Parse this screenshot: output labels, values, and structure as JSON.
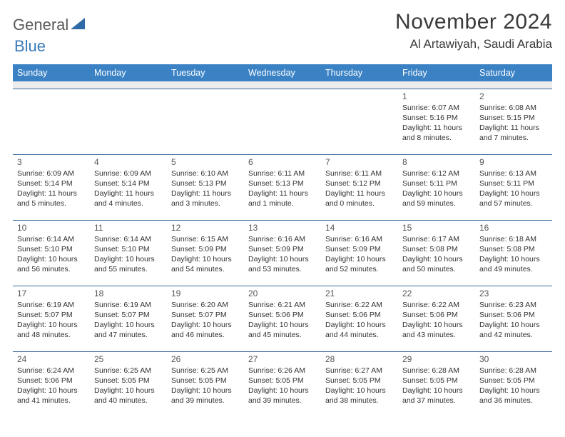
{
  "brand": {
    "word1": "General",
    "word2": "Blue",
    "color_accent": "#3a7ab8",
    "header_bg": "#3a82c4",
    "rule_color": "#3a6a9a"
  },
  "title": {
    "month": "November 2024",
    "location": "Al Artawiyah, Saudi Arabia"
  },
  "weekdays": [
    "Sunday",
    "Monday",
    "Tuesday",
    "Wednesday",
    "Thursday",
    "Friday",
    "Saturday"
  ],
  "calendar": {
    "first_weekday_index": 5,
    "days": [
      {
        "n": 1,
        "sunrise": "6:07 AM",
        "sunset": "5:16 PM",
        "daylight": "11 hours and 8 minutes."
      },
      {
        "n": 2,
        "sunrise": "6:08 AM",
        "sunset": "5:15 PM",
        "daylight": "11 hours and 7 minutes."
      },
      {
        "n": 3,
        "sunrise": "6:09 AM",
        "sunset": "5:14 PM",
        "daylight": "11 hours and 5 minutes."
      },
      {
        "n": 4,
        "sunrise": "6:09 AM",
        "sunset": "5:14 PM",
        "daylight": "11 hours and 4 minutes."
      },
      {
        "n": 5,
        "sunrise": "6:10 AM",
        "sunset": "5:13 PM",
        "daylight": "11 hours and 3 minutes."
      },
      {
        "n": 6,
        "sunrise": "6:11 AM",
        "sunset": "5:13 PM",
        "daylight": "11 hours and 1 minute."
      },
      {
        "n": 7,
        "sunrise": "6:11 AM",
        "sunset": "5:12 PM",
        "daylight": "11 hours and 0 minutes."
      },
      {
        "n": 8,
        "sunrise": "6:12 AM",
        "sunset": "5:11 PM",
        "daylight": "10 hours and 59 minutes."
      },
      {
        "n": 9,
        "sunrise": "6:13 AM",
        "sunset": "5:11 PM",
        "daylight": "10 hours and 57 minutes."
      },
      {
        "n": 10,
        "sunrise": "6:14 AM",
        "sunset": "5:10 PM",
        "daylight": "10 hours and 56 minutes."
      },
      {
        "n": 11,
        "sunrise": "6:14 AM",
        "sunset": "5:10 PM",
        "daylight": "10 hours and 55 minutes."
      },
      {
        "n": 12,
        "sunrise": "6:15 AM",
        "sunset": "5:09 PM",
        "daylight": "10 hours and 54 minutes."
      },
      {
        "n": 13,
        "sunrise": "6:16 AM",
        "sunset": "5:09 PM",
        "daylight": "10 hours and 53 minutes."
      },
      {
        "n": 14,
        "sunrise": "6:16 AM",
        "sunset": "5:09 PM",
        "daylight": "10 hours and 52 minutes."
      },
      {
        "n": 15,
        "sunrise": "6:17 AM",
        "sunset": "5:08 PM",
        "daylight": "10 hours and 50 minutes."
      },
      {
        "n": 16,
        "sunrise": "6:18 AM",
        "sunset": "5:08 PM",
        "daylight": "10 hours and 49 minutes."
      },
      {
        "n": 17,
        "sunrise": "6:19 AM",
        "sunset": "5:07 PM",
        "daylight": "10 hours and 48 minutes."
      },
      {
        "n": 18,
        "sunrise": "6:19 AM",
        "sunset": "5:07 PM",
        "daylight": "10 hours and 47 minutes."
      },
      {
        "n": 19,
        "sunrise": "6:20 AM",
        "sunset": "5:07 PM",
        "daylight": "10 hours and 46 minutes."
      },
      {
        "n": 20,
        "sunrise": "6:21 AM",
        "sunset": "5:06 PM",
        "daylight": "10 hours and 45 minutes."
      },
      {
        "n": 21,
        "sunrise": "6:22 AM",
        "sunset": "5:06 PM",
        "daylight": "10 hours and 44 minutes."
      },
      {
        "n": 22,
        "sunrise": "6:22 AM",
        "sunset": "5:06 PM",
        "daylight": "10 hours and 43 minutes."
      },
      {
        "n": 23,
        "sunrise": "6:23 AM",
        "sunset": "5:06 PM",
        "daylight": "10 hours and 42 minutes."
      },
      {
        "n": 24,
        "sunrise": "6:24 AM",
        "sunset": "5:06 PM",
        "daylight": "10 hours and 41 minutes."
      },
      {
        "n": 25,
        "sunrise": "6:25 AM",
        "sunset": "5:05 PM",
        "daylight": "10 hours and 40 minutes."
      },
      {
        "n": 26,
        "sunrise": "6:25 AM",
        "sunset": "5:05 PM",
        "daylight": "10 hours and 39 minutes."
      },
      {
        "n": 27,
        "sunrise": "6:26 AM",
        "sunset": "5:05 PM",
        "daylight": "10 hours and 39 minutes."
      },
      {
        "n": 28,
        "sunrise": "6:27 AM",
        "sunset": "5:05 PM",
        "daylight": "10 hours and 38 minutes."
      },
      {
        "n": 29,
        "sunrise": "6:28 AM",
        "sunset": "5:05 PM",
        "daylight": "10 hours and 37 minutes."
      },
      {
        "n": 30,
        "sunrise": "6:28 AM",
        "sunset": "5:05 PM",
        "daylight": "10 hours and 36 minutes."
      }
    ]
  },
  "labels": {
    "sunrise": "Sunrise:",
    "sunset": "Sunset:",
    "daylight": "Daylight:"
  }
}
